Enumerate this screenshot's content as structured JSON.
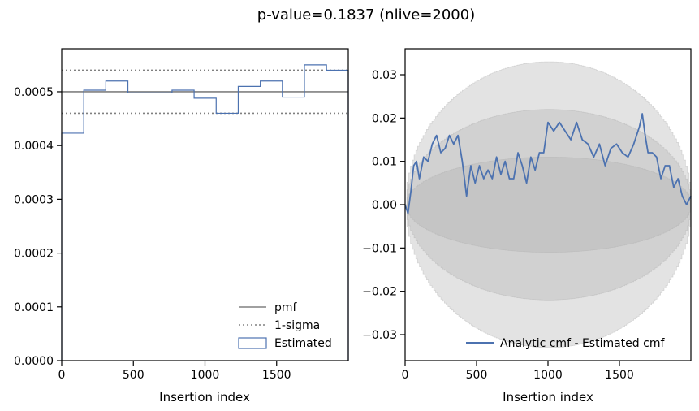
{
  "chart_data": {
    "suptitle": "p-value=0.1837 (nlive=2000)",
    "charts": [
      {
        "type": "step-histogram",
        "xlabel": "Insertion index",
        "ylabel": "",
        "xlim": [
          0,
          2000
        ],
        "ylim": [
          0,
          0.00058
        ],
        "xticks": [
          0,
          500,
          1000,
          1500
        ],
        "xtick_labels": [
          "0",
          "500",
          "1000",
          "1500"
        ],
        "yticks": [
          0,
          0.0001,
          0.0002,
          0.0003,
          0.0004,
          0.0005
        ],
        "ytick_labels": [
          "0.0000",
          "0.0001",
          "0.0002",
          "0.0003",
          "0.0004",
          "0.0005"
        ],
        "pmf": 0.0005,
        "sigma_band": [
          0.00046,
          0.00054
        ],
        "bin_edges": [
          0,
          154,
          308,
          462,
          616,
          770,
          924,
          1078,
          1232,
          1386,
          1540,
          1694,
          1848,
          2000
        ],
        "bin_values": [
          0.000423,
          0.000503,
          0.00052,
          0.000498,
          0.000498,
          0.000503,
          0.000488,
          0.00046,
          0.00051,
          0.00052,
          0.00049,
          0.00055,
          0.00054
        ],
        "legend": [
          "pmf",
          "1-sigma",
          "Estimated"
        ],
        "legend_loc": "lower right",
        "colors": {
          "pmf": "#808080",
          "sigma": "#808080",
          "estimated": "#4c72b0"
        }
      },
      {
        "type": "line",
        "xlabel": "Insertion index",
        "ylabel": "",
        "xlim": [
          0,
          2000
        ],
        "ylim": [
          -0.036,
          0.036
        ],
        "xticks": [
          0,
          500,
          1000,
          1500
        ],
        "xtick_labels": [
          "0",
          "500",
          "1000",
          "1500"
        ],
        "yticks": [
          -0.03,
          -0.02,
          -0.01,
          0.0,
          0.01,
          0.02,
          0.03
        ],
        "ytick_labels": [
          "−0.03",
          "−0.02",
          "−0.01",
          "0.00",
          "0.01",
          "0.02",
          "0.03"
        ],
        "band_half_widths_max": [
          0.011,
          0.022,
          0.033
        ],
        "series": [
          {
            "name": "Analytic cmf - Estimated cmf",
            "x": [
              0,
              20,
              40,
              60,
              80,
              100,
              130,
              160,
              190,
              220,
              250,
              280,
              310,
              340,
              370,
              400,
              430,
              460,
              490,
              520,
              550,
              580,
              610,
              640,
              670,
              700,
              730,
              760,
              790,
              820,
              850,
              880,
              910,
              940,
              970,
              1000,
              1040,
              1080,
              1120,
              1160,
              1200,
              1240,
              1280,
              1320,
              1360,
              1400,
              1440,
              1480,
              1520,
              1560,
              1600,
              1640,
              1660,
              1680,
              1700,
              1730,
              1760,
              1790,
              1820,
              1850,
              1880,
              1910,
              1940,
              1970,
              2000
            ],
            "y": [
              0.0,
              -0.002,
              0.003,
              0.009,
              0.01,
              0.006,
              0.011,
              0.01,
              0.014,
              0.016,
              0.012,
              0.013,
              0.016,
              0.014,
              0.016,
              0.01,
              0.002,
              0.009,
              0.005,
              0.009,
              0.006,
              0.008,
              0.006,
              0.011,
              0.007,
              0.01,
              0.006,
              0.006,
              0.012,
              0.009,
              0.005,
              0.011,
              0.008,
              0.012,
              0.012,
              0.019,
              0.017,
              0.019,
              0.017,
              0.015,
              0.019,
              0.015,
              0.014,
              0.011,
              0.014,
              0.009,
              0.013,
              0.014,
              0.012,
              0.011,
              0.014,
              0.018,
              0.021,
              0.016,
              0.012,
              0.012,
              0.011,
              0.006,
              0.009,
              0.009,
              0.004,
              0.006,
              0.002,
              0.0,
              0.002
            ]
          }
        ],
        "legend": [
          "Analytic cmf - Estimated cmf"
        ],
        "legend_loc": "lower right",
        "colors": {
          "line": "#4c72b0",
          "band": "#b0b0b0"
        }
      }
    ]
  }
}
